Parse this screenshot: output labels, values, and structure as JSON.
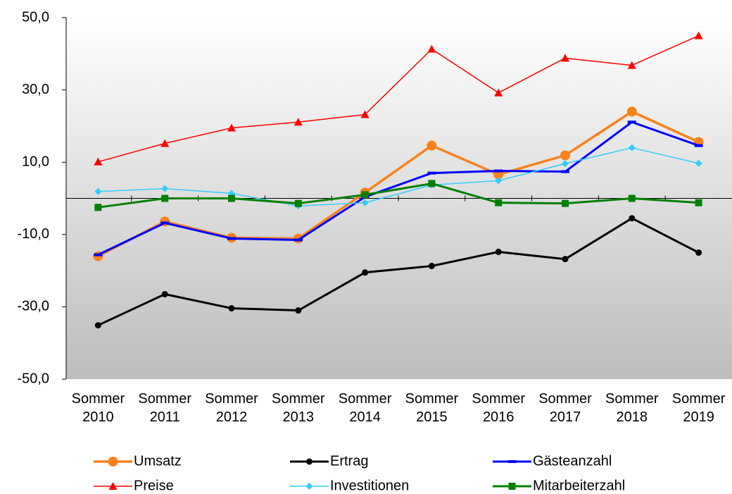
{
  "chart_data": {
    "type": "line",
    "categories": [
      "Sommer 2010",
      "Sommer 2011",
      "Sommer 2012",
      "Sommer 2013",
      "Sommer 2014",
      "Sommer 2015",
      "Sommer 2016",
      "Sommer 2017",
      "Sommer 2018",
      "Sommer 2019"
    ],
    "series": [
      {
        "name": "Umsatz",
        "color": "#f7821d",
        "marker": "circle",
        "values": [
          -16.0,
          -6.4,
          -10.9,
          -11.1,
          1.6,
          14.6,
          6.6,
          11.9,
          24.0,
          15.6
        ]
      },
      {
        "name": "Ertrag",
        "color": "#000000",
        "marker": "dot",
        "values": [
          -35.1,
          -26.5,
          -30.4,
          -31.0,
          -20.5,
          -18.7,
          -14.8,
          -16.8,
          -5.5,
          -15.0
        ]
      },
      {
        "name": "Gästeanzahl",
        "color": "#0000ff",
        "marker": "dash",
        "values": [
          -15.6,
          -6.8,
          -11.1,
          -11.5,
          0.4,
          7.0,
          7.6,
          7.4,
          21.1,
          14.6
        ]
      },
      {
        "name": "Preise",
        "color": "#ff0000",
        "marker": "triangle",
        "values": [
          10.1,
          15.2,
          19.5,
          21.1,
          23.2,
          41.3,
          29.2,
          38.8,
          36.8,
          45.0
        ]
      },
      {
        "name": "Investitionen",
        "color": "#33ccff",
        "marker": "diamond",
        "values": [
          1.9,
          2.7,
          1.4,
          -2.1,
          -1.2,
          3.7,
          4.9,
          9.6,
          14.0,
          9.7
        ]
      },
      {
        "name": "Mitarbeiterzahl",
        "color": "#008000",
        "marker": "square",
        "values": [
          -2.5,
          0.0,
          0.0,
          -1.4,
          1.0,
          4.1,
          -1.2,
          -1.4,
          0.0,
          -1.2
        ]
      }
    ],
    "ylim": [
      -50,
      50
    ],
    "yticks": [
      {
        "value": 50,
        "label": "50,0"
      },
      {
        "value": 30,
        "label": "30,0"
      },
      {
        "value": 10,
        "label": "10,0"
      },
      {
        "value": -10,
        "label": "-10,0"
      },
      {
        "value": -30,
        "label": "-30,0"
      },
      {
        "value": -50,
        "label": "-50,0"
      }
    ],
    "legend": "bottom"
  }
}
